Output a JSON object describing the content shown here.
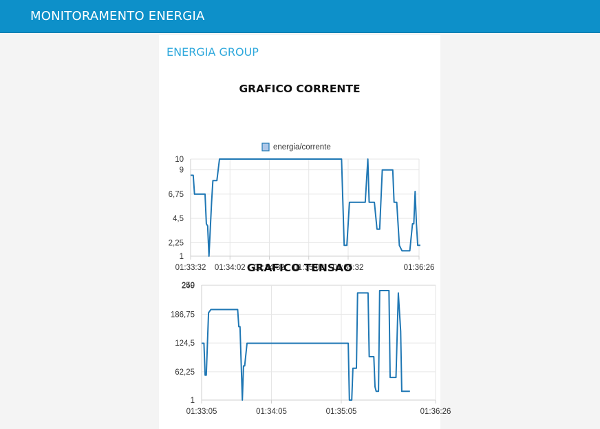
{
  "header": {
    "title": "MONITORAMENTO ENERGIA"
  },
  "group": {
    "title": "ENERGIA GROUP"
  },
  "chart_data": [
    {
      "type": "line",
      "title": "GRAFICO CORRENTE",
      "legend": [
        "energia/corrente"
      ],
      "legend_position": "top",
      "grid": true,
      "ylim": [
        1,
        10
      ],
      "xlim": [
        "01:33:32",
        "01:36:26"
      ],
      "y_ticks": [
        "1",
        "2,25",
        "4,5",
        "6,75",
        "9",
        "10"
      ],
      "x_ticks": [
        "01:33:32",
        "01:34:02",
        "01:34:32",
        "01:35:02",
        "01:35:32",
        "01:36:26"
      ],
      "series": [
        {
          "name": "energia/corrente",
          "color": "#1f77b4",
          "points": [
            [
              "01:33:32",
              8.5
            ],
            [
              "01:33:34",
              8.5
            ],
            [
              "01:33:35",
              6.75
            ],
            [
              "01:33:43",
              6.75
            ],
            [
              "01:33:44",
              4.0
            ],
            [
              "01:33:45",
              3.8
            ],
            [
              "01:33:46",
              1.0
            ],
            [
              "01:33:48",
              6.0
            ],
            [
              "01:33:49",
              8.0
            ],
            [
              "01:33:52",
              8.0
            ],
            [
              "01:33:54",
              10.0
            ],
            [
              "01:35:27",
              10.0
            ],
            [
              "01:35:29",
              2.0
            ],
            [
              "01:35:31",
              2.0
            ],
            [
              "01:35:33",
              6.0
            ],
            [
              "01:35:45",
              6.0
            ],
            [
              "01:35:47",
              10.0
            ],
            [
              "01:35:48",
              6.0
            ],
            [
              "01:35:52",
              6.0
            ],
            [
              "01:35:54",
              3.5
            ],
            [
              "01:35:56",
              3.5
            ],
            [
              "01:35:58",
              9.0
            ],
            [
              "01:36:06",
              9.0
            ],
            [
              "01:36:07",
              6.0
            ],
            [
              "01:36:09",
              6.0
            ],
            [
              "01:36:11",
              2.0
            ],
            [
              "01:36:13",
              1.5
            ],
            [
              "01:36:19",
              1.5
            ],
            [
              "01:36:21",
              4.0
            ],
            [
              "01:36:22",
              4.0
            ],
            [
              "01:36:23",
              7.0
            ],
            [
              "01:36:24",
              4.0
            ],
            [
              "01:36:25",
              2.0
            ],
            [
              "01:36:27",
              2.0
            ]
          ]
        }
      ]
    },
    {
      "type": "line",
      "title": "GRAFICO TENSAO",
      "grid": true,
      "ylim": [
        1,
        250
      ],
      "xlim": [
        "01:33:05",
        "01:36:26"
      ],
      "y_ticks": [
        "1",
        "62,25",
        "124,5",
        "186,75",
        "249",
        "250"
      ],
      "x_ticks": [
        "01:33:05",
        "01:34:05",
        "01:35:05",
        "01:36:26"
      ],
      "series": [
        {
          "name": "",
          "color": "#1f77b4",
          "points": [
            [
              "01:33:05",
              124
            ],
            [
              "01:33:07",
              124
            ],
            [
              "01:33:08",
              55
            ],
            [
              "01:33:09",
              55
            ],
            [
              "01:33:11",
              190
            ],
            [
              "01:33:13",
              197
            ],
            [
              "01:33:36",
              197
            ],
            [
              "01:33:37",
              160
            ],
            [
              "01:33:38",
              160
            ],
            [
              "01:33:40",
              1
            ],
            [
              "01:33:41",
              75
            ],
            [
              "01:33:42",
              75
            ],
            [
              "01:33:44",
              124
            ],
            [
              "01:35:11",
              124
            ],
            [
              "01:35:12",
              1
            ],
            [
              "01:35:14",
              1
            ],
            [
              "01:35:15",
              70
            ],
            [
              "01:35:18",
              70
            ],
            [
              "01:35:19",
              233
            ],
            [
              "01:35:28",
              233
            ],
            [
              "01:35:29",
              95
            ],
            [
              "01:35:30",
              95
            ],
            [
              "01:35:31",
              95
            ],
            [
              "01:35:33",
              95
            ],
            [
              "01:35:34",
              30
            ],
            [
              "01:35:35",
              20
            ],
            [
              "01:35:37",
              20
            ],
            [
              "01:35:38",
              238
            ],
            [
              "01:35:46",
              238
            ],
            [
              "01:35:47",
              50
            ],
            [
              "01:35:52",
              50
            ],
            [
              "01:35:54",
              233
            ],
            [
              "01:35:56",
              150
            ],
            [
              "01:35:57",
              20
            ],
            [
              "01:36:04",
              20
            ]
          ]
        }
      ]
    }
  ]
}
